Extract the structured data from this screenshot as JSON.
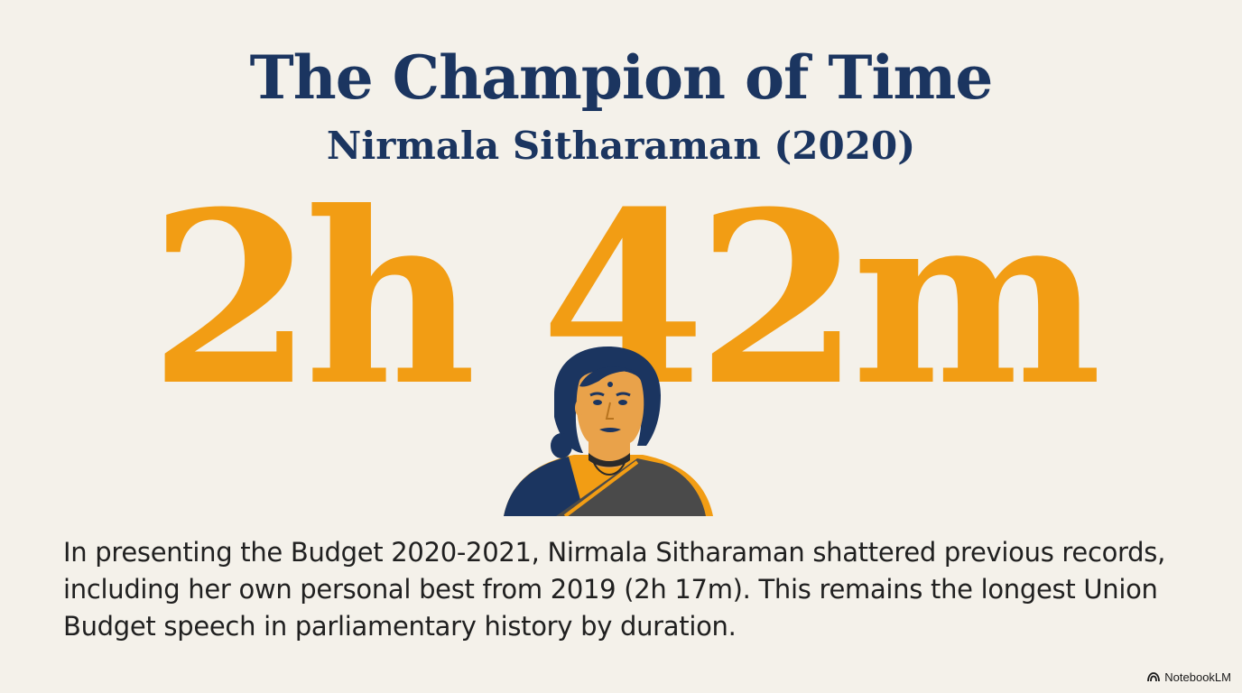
{
  "slide": {
    "title": "The Champion of Time",
    "subtitle": "Nirmala Sitharaman (2020)",
    "duration": "2h 42m",
    "description": "In presenting the Budget 2020-2021, Nirmala Sitharaman shattered previous records, including her own personal best from 2019 (2h 17m). This remains the longest Union Budget speech in parliamentary history by duration."
  },
  "branding": {
    "label": "NotebookLM",
    "icon": "notebooklm-logo-icon"
  },
  "colors": {
    "background": "#f4f1ea",
    "navy": "#1b3560",
    "accent_orange": "#f29d14",
    "body_text": "#202020",
    "portrait_skin": "#e9a24a",
    "portrait_hair": "#1b3560",
    "portrait_saree_dark": "#4a4a4a"
  }
}
